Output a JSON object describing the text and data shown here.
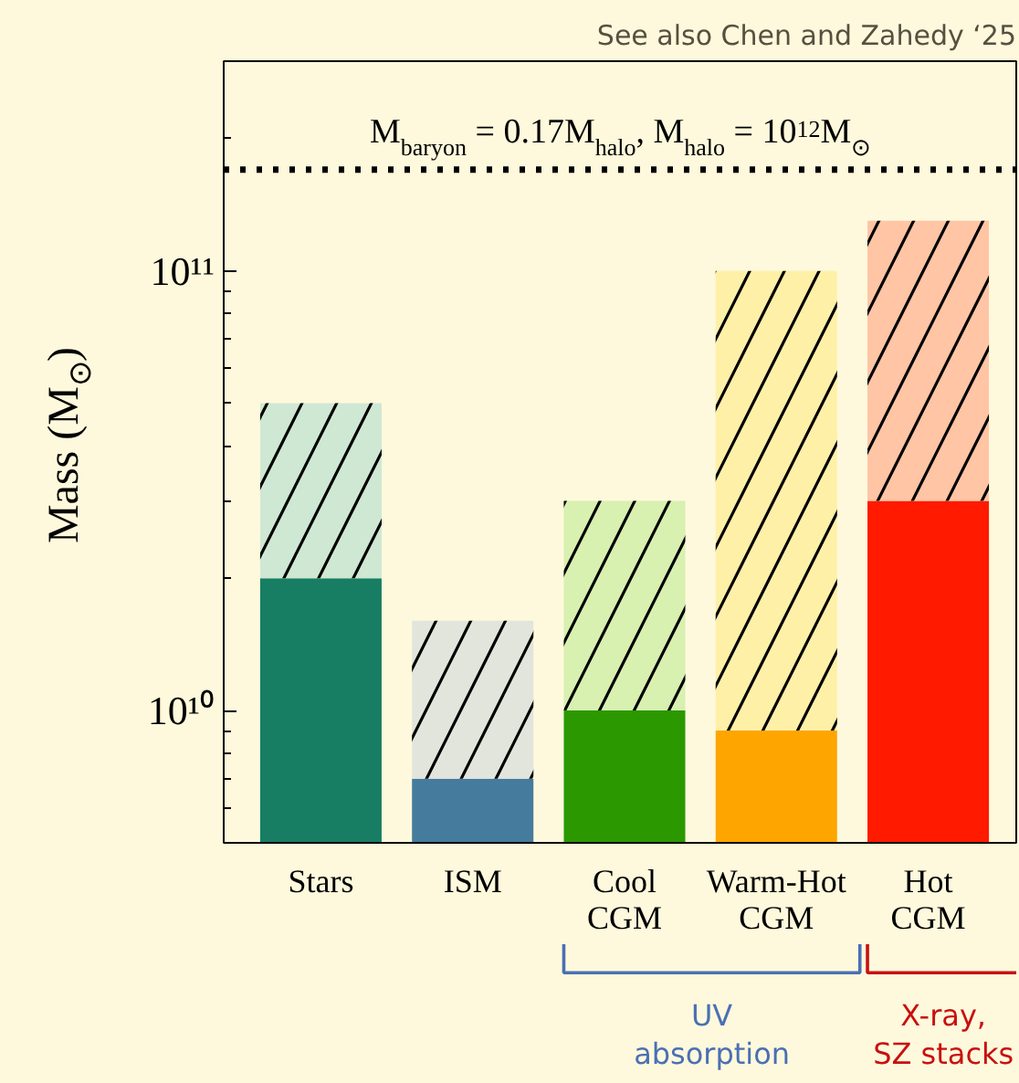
{
  "chart_data": {
    "type": "bar",
    "stacked": true,
    "ylabel": "Mass (M$_{⊙}$)",
    "categories": [
      "Stars",
      "ISM",
      "Cool\nCGM",
      "Warm-Hot\nCGM",
      "Hot\nCGM"
    ],
    "series": [
      {
        "colors": [
          "#177e63",
          "#457b9d",
          "#2b9800",
          "#ffa500",
          "#ff1a00"
        ],
        "values": [
          20000000000.0,
          7000000000.0,
          10000000000.0,
          9000000000.0,
          30000000000.0
        ]
      },
      {
        "colors": [
          "#cfe8d3",
          "#e2e5dc",
          "#d8f0b0",
          "#fff0a8",
          "#ffc5a5"
        ],
        "values": [
          30000000000.0,
          9000000000.0,
          20000000000.0,
          91000000000.0,
          100000000000.0
        ]
      }
    ],
    "log": true,
    "ylim": [
      5000000000.0,
      300000000000.0
    ],
    "yticks": [
      {
        "value": 10000000000.0,
        "label": "10¹⁰"
      },
      {
        "value": 100000000000.0,
        "label": "10¹¹"
      }
    ],
    "ref_lines": [
      {
        "axis": "y",
        "value": 170000000000.0,
        "color": "#000000",
        "line_style": "dotted"
      }
    ],
    "annotations": [
      "See also Chen and Zahedy ‘25",
      "M$_{baryon}$ = 0.17M$_{halo}$, M$_{halo}$ = 10$^{12}$M$_{⊙}$",
      "UV\nabsorption",
      "X-ray,\nSZ stacks"
    ],
    "grid": false
  }
}
